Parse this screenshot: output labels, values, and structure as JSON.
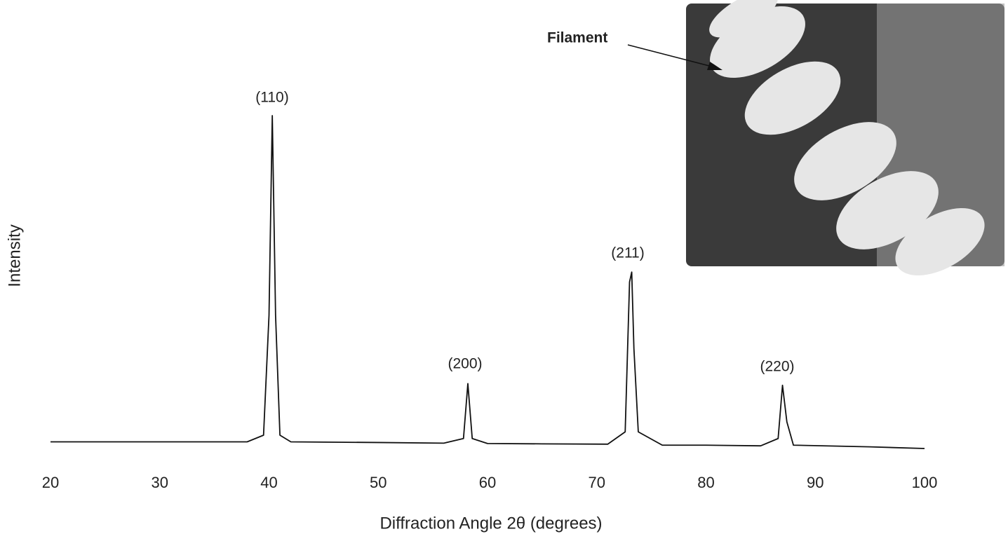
{
  "chart_data": {
    "type": "line",
    "xlabel": "Diffraction Angle 2θ (degrees)",
    "ylabel": "Intensity",
    "annotations": [
      "(110)",
      "(200)",
      "(211)",
      "(220)",
      "Filament"
    ],
    "series": [
      {
        "name": "Intensity",
        "color": "#111111",
        "x": [
          20,
          30,
          38,
          39.5,
          40.0,
          40.3,
          40.6,
          41,
          42,
          50,
          56,
          57.8,
          58.2,
          58.6,
          60,
          65,
          71,
          72.6,
          73.0,
          73.2,
          73.4,
          73.8,
          76,
          80,
          85,
          86.6,
          87.0,
          87.4,
          88,
          95,
          100
        ],
        "values": [
          2,
          2,
          2,
          4,
          40,
          100,
          40,
          4,
          2,
          1.8,
          1.6,
          3,
          19.5,
          3,
          1.5,
          1.4,
          1.3,
          5,
          50,
          53,
          30,
          5,
          1,
          1,
          0.8,
          3,
          19,
          8,
          1,
          0.5,
          0
        ]
      }
    ],
    "xlim": [
      20,
      100
    ],
    "xticks": [
      20,
      30,
      40,
      50,
      60,
      70,
      80,
      90,
      100
    ],
    "ylim": [
      0,
      100
    ],
    "grid": false
  }
}
